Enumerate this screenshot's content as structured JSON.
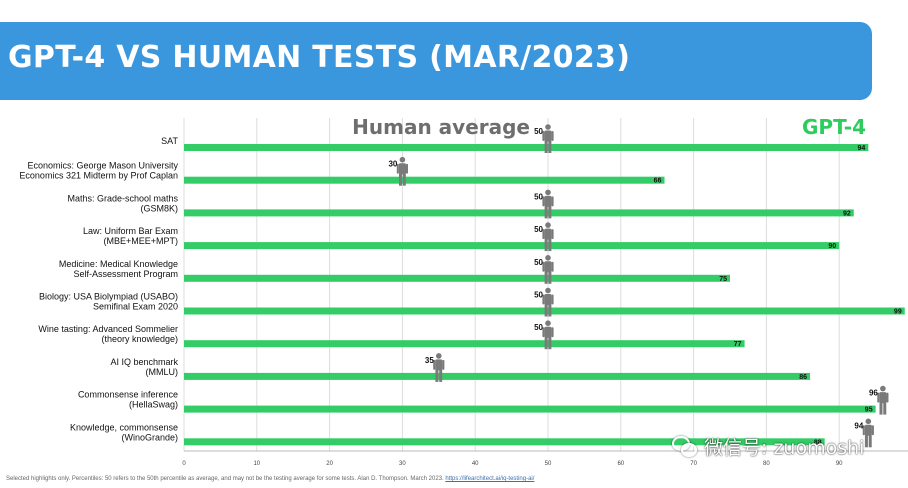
{
  "title": "GPT-4 VS HUMAN TESTS (MAR/2023)",
  "chart_data": {
    "type": "bar",
    "legend": {
      "human_label": "Human average",
      "gpt_label": "GPT-4"
    },
    "xlim": [
      0,
      100
    ],
    "xticks": [
      0,
      10,
      20,
      30,
      40,
      50,
      60,
      70,
      80,
      90
    ],
    "grid": true,
    "categories": [
      [
        "SAT"
      ],
      [
        "Economics: George Mason University",
        "Economics 321 Midterm by Prof Caplan"
      ],
      [
        "Maths: Grade-school maths",
        "(GSM8K)"
      ],
      [
        "Law: Uniform Bar Exam",
        "(MBE+MEE+MPT)"
      ],
      [
        "Medicine: Medical Knowledge",
        "Self-Assessment Program"
      ],
      [
        "Biology: USA Biolympiad (USABO)",
        "Semifinal Exam 2020"
      ],
      [
        "Wine tasting: Advanced Sommelier",
        "(theory knowledge)"
      ],
      [
        "AI IQ benchmark",
        "(MMLU)"
      ],
      [
        "Commonsense inference",
        "(HellaSwag)"
      ],
      [
        "Knowledge, commonsense",
        "(WinoGrande)"
      ]
    ],
    "series": [
      {
        "name": "GPT-4",
        "color": "#33cc66",
        "values": [
          94,
          66,
          92,
          90,
          75,
          99,
          77,
          86,
          95,
          88
        ]
      },
      {
        "name": "Human average",
        "color": "#8a8a8a",
        "values": [
          50,
          30,
          50,
          50,
          50,
          50,
          50,
          35,
          96,
          94
        ]
      }
    ]
  },
  "footnote": {
    "text": "Selected highlights only. Percentiles: 50 refers to the 50th percentile as average, and may not be the testing average for some tests. Alan D. Thompson. March 2023. ",
    "link": "https://lifearchitect.ai/iq-testing-ai/"
  },
  "watermark": {
    "text": "微信号: zuomoshi",
    "icon": "wechat-icon"
  }
}
